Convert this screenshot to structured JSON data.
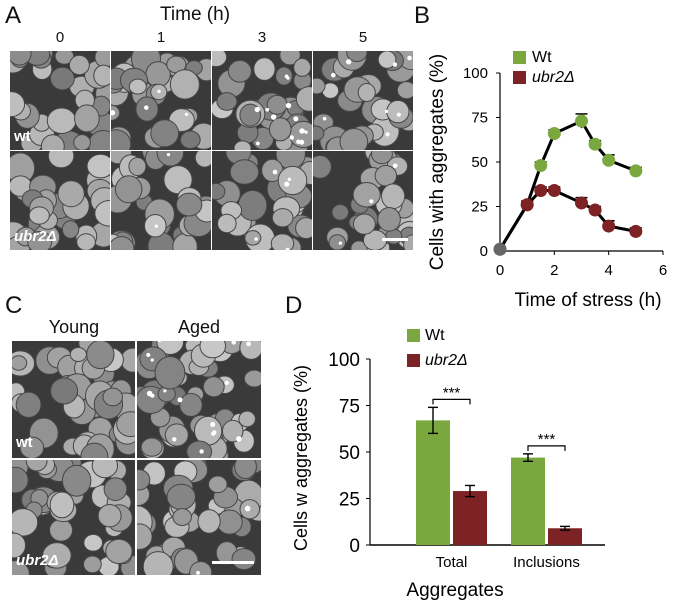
{
  "panels": {
    "a": "A",
    "b": "B",
    "c": "C",
    "d": "D"
  },
  "panel_a": {
    "time_axis_label": "Time (h)",
    "columns": [
      "0",
      "1",
      "3",
      "5"
    ],
    "rows": [
      "wt",
      "ubr2Δ"
    ]
  },
  "panel_c": {
    "columns": [
      "Young",
      "Aged"
    ],
    "rows": [
      "wt",
      "ubr2Δ"
    ]
  },
  "colors": {
    "wt": "#7aa83f",
    "ubr2": "#7d2326"
  },
  "chart_data": [
    {
      "type": "line",
      "panel": "B",
      "xlabel": "Time of stress (h)",
      "ylabel": "Cells with aggregates (%)",
      "xlim": [
        0,
        6
      ],
      "ylim": [
        0,
        100
      ],
      "xticks": [
        "0",
        "2",
        "4",
        "6"
      ],
      "yticks": [
        "0",
        "25",
        "50",
        "75",
        "100"
      ],
      "legend": [
        "Wt",
        "ubr2Δ"
      ],
      "series": [
        {
          "name": "Wt",
          "x": [
            0,
            1,
            1.5,
            2,
            3,
            3.5,
            4,
            5
          ],
          "y": [
            1,
            26,
            48,
            66,
            73,
            60,
            51,
            45
          ],
          "err": [
            1,
            2,
            2,
            2,
            4,
            2,
            3,
            2
          ]
        },
        {
          "name": "ubr2Δ",
          "x": [
            0,
            1,
            1.5,
            2,
            3,
            3.5,
            4,
            5
          ],
          "y": [
            1,
            26,
            34,
            34,
            27,
            23,
            14,
            11
          ],
          "err": [
            1,
            2,
            2,
            2,
            3,
            2,
            3,
            2
          ]
        }
      ]
    },
    {
      "type": "bar",
      "panel": "D",
      "xlabel": "Aggregates",
      "ylabel": "Cells w aggregates (%)",
      "categories": [
        "Total",
        "Inclusions"
      ],
      "ylim": [
        0,
        100
      ],
      "yticks": [
        "0",
        "25",
        "50",
        "75",
        "100"
      ],
      "legend": [
        "Wt",
        "ubr2Δ"
      ],
      "series": [
        {
          "name": "Wt",
          "values": [
            67,
            47
          ],
          "err": [
            7,
            2
          ]
        },
        {
          "name": "ubr2Δ",
          "values": [
            29,
            9
          ],
          "err": [
            3,
            1
          ]
        }
      ],
      "significance": [
        "***",
        "***"
      ]
    }
  ]
}
